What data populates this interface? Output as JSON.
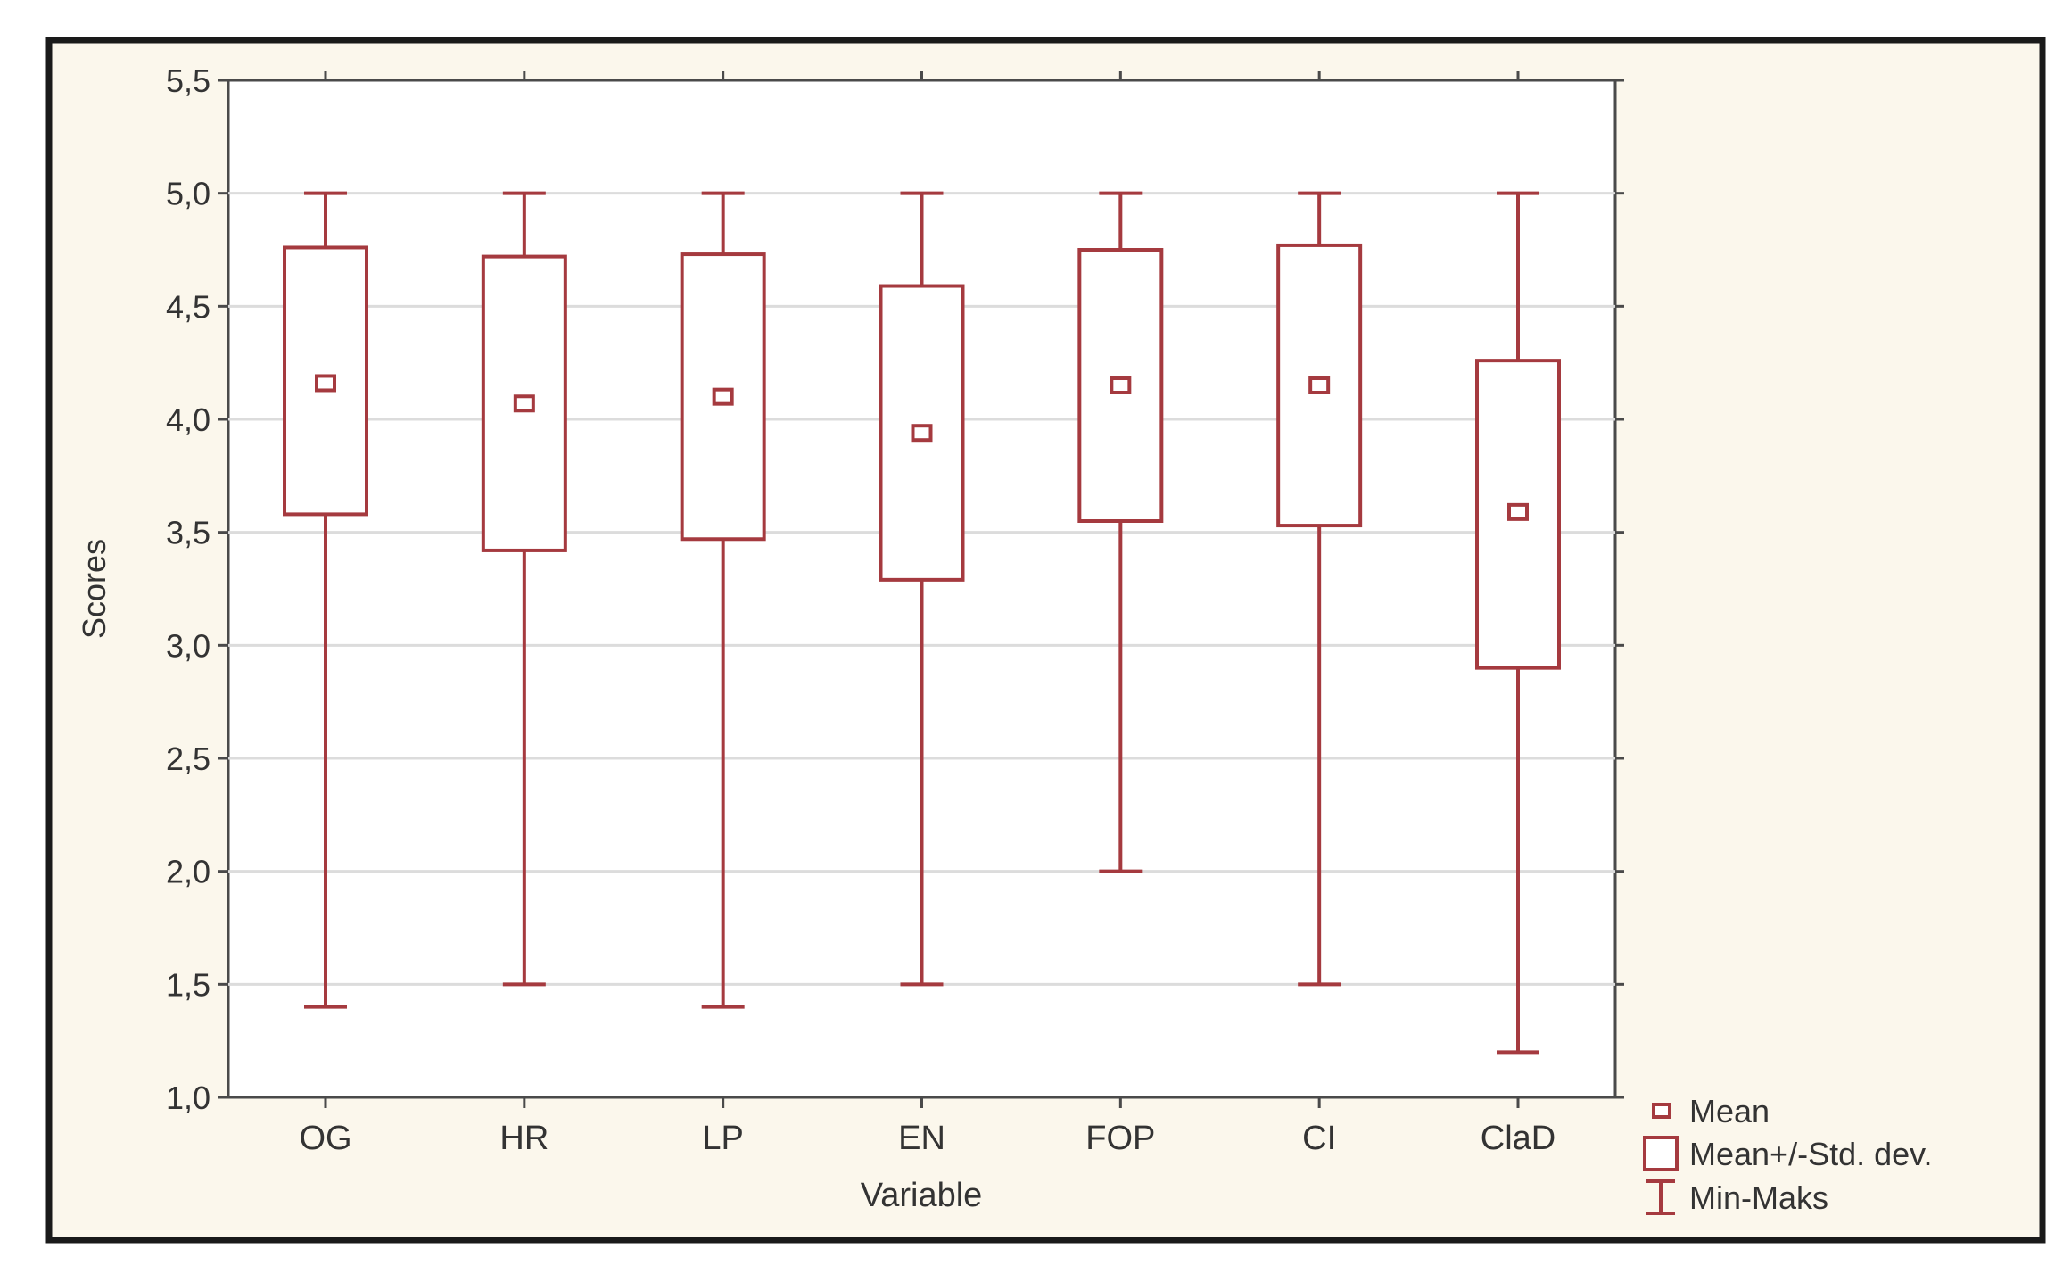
{
  "chart_data": {
    "type": "box",
    "title": "",
    "xlabel": "Variable",
    "ylabel": "Scores",
    "ylim": [
      1.0,
      5.5
    ],
    "yticks": [
      "1,0",
      "1,5",
      "2,0",
      "2,5",
      "3,0",
      "3,5",
      "4,0",
      "4,5",
      "5,0",
      "5,5"
    ],
    "ytick_values": [
      1.0,
      1.5,
      2.0,
      2.5,
      3.0,
      3.5,
      4.0,
      4.5,
      5.0,
      5.5
    ],
    "grid": true,
    "legend_position": "bottom-right",
    "categories": [
      "OG",
      "HR",
      "LP",
      "EN",
      "FOP",
      "CI",
      "ClaD"
    ],
    "series": [
      {
        "category": "OG",
        "mean": 4.16,
        "sd_low": 3.58,
        "sd_high": 4.76,
        "min": 1.4,
        "max": 5.0
      },
      {
        "category": "HR",
        "mean": 4.07,
        "sd_low": 3.42,
        "sd_high": 4.72,
        "min": 1.5,
        "max": 5.0
      },
      {
        "category": "LP",
        "mean": 4.1,
        "sd_low": 3.47,
        "sd_high": 4.73,
        "min": 1.4,
        "max": 5.0
      },
      {
        "category": "EN",
        "mean": 3.94,
        "sd_low": 3.29,
        "sd_high": 4.59,
        "min": 1.5,
        "max": 5.0
      },
      {
        "category": "FOP",
        "mean": 4.15,
        "sd_low": 3.55,
        "sd_high": 4.75,
        "min": 2.0,
        "max": 5.0
      },
      {
        "category": "CI",
        "mean": 4.15,
        "sd_low": 3.53,
        "sd_high": 4.77,
        "min": 1.5,
        "max": 5.0
      },
      {
        "category": "ClaD",
        "mean": 3.59,
        "sd_low": 2.9,
        "sd_high": 4.26,
        "min": 1.2,
        "max": 5.0
      }
    ],
    "legend": [
      {
        "symbol": "mean",
        "label": "Mean"
      },
      {
        "symbol": "box",
        "label": "Mean+/-Std. dev."
      },
      {
        "symbol": "whisker",
        "label": "Min-Maks"
      }
    ],
    "colors": {
      "series": "#a53a3f",
      "axis": "#4a4a4a",
      "grid": "#dcdcdc",
      "frame": "#1a1a1a",
      "panel": "#fbf7ec",
      "text": "#333333"
    }
  }
}
